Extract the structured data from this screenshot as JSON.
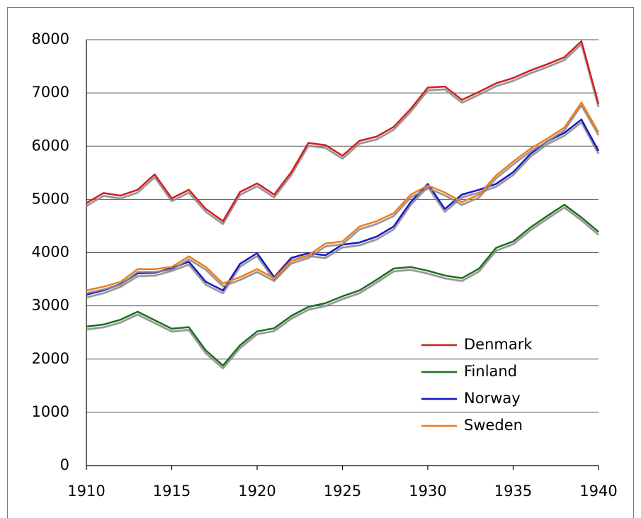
{
  "chart_data": {
    "type": "line",
    "x": [
      1910,
      1911,
      1912,
      1913,
      1914,
      1915,
      1916,
      1917,
      1918,
      1919,
      1920,
      1921,
      1922,
      1923,
      1924,
      1925,
      1926,
      1927,
      1928,
      1929,
      1930,
      1931,
      1932,
      1933,
      1934,
      1935,
      1936,
      1937,
      1938,
      1939,
      1940
    ],
    "series": [
      {
        "name": "Denmark",
        "color": "#d41c1c",
        "values": [
          4930,
          5120,
          5070,
          5180,
          5470,
          5020,
          5180,
          4820,
          4590,
          5140,
          5300,
          5090,
          5510,
          6060,
          6020,
          5820,
          6100,
          6180,
          6360,
          6700,
          7100,
          7120,
          6870,
          7020,
          7180,
          7280,
          7420,
          7540,
          7670,
          7970,
          6790
        ]
      },
      {
        "name": "Finland",
        "color": "#1c6e1c",
        "values": [
          2610,
          2650,
          2740,
          2890,
          2730,
          2570,
          2600,
          2160,
          1880,
          2260,
          2520,
          2580,
          2810,
          2980,
          3050,
          3180,
          3290,
          3490,
          3700,
          3730,
          3660,
          3570,
          3520,
          3700,
          4090,
          4210,
          4470,
          4690,
          4900,
          4660,
          4390
        ]
      },
      {
        "name": "Norway",
        "color": "#1414c8",
        "values": [
          3210,
          3290,
          3410,
          3610,
          3620,
          3710,
          3830,
          3450,
          3290,
          3790,
          3990,
          3540,
          3900,
          3990,
          3950,
          4150,
          4190,
          4300,
          4490,
          4950,
          5290,
          4820,
          5090,
          5180,
          5290,
          5510,
          5850,
          6090,
          6250,
          6500,
          5910
        ]
      },
      {
        "name": "Sweden",
        "color": "#f07c1c",
        "values": [
          3290,
          3360,
          3450,
          3690,
          3690,
          3730,
          3930,
          3730,
          3420,
          3540,
          3690,
          3520,
          3850,
          3950,
          4170,
          4210,
          4490,
          4590,
          4740,
          5090,
          5260,
          5130,
          4950,
          5090,
          5450,
          5710,
          5950,
          6140,
          6350,
          6820,
          6260
        ]
      }
    ],
    "xlim": [
      1910,
      1940
    ],
    "xticks": [
      1910,
      1915,
      1920,
      1925,
      1930,
      1935,
      1940
    ],
    "ylim": [
      0,
      8000
    ],
    "yticks": [
      0,
      1000,
      2000,
      3000,
      4000,
      5000,
      6000,
      7000,
      8000
    ],
    "grid": true,
    "legend": "lower right"
  }
}
